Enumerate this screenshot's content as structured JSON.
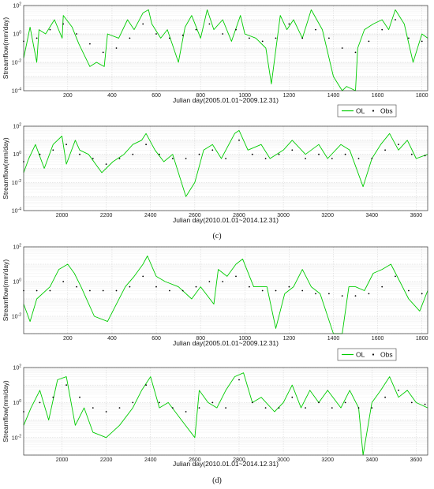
{
  "figure": {
    "captions": [
      "(c)",
      "(d)"
    ]
  },
  "legend": {
    "ol_label": "OL",
    "obs_label": "Obs",
    "ol_color": "#00cc00",
    "obs_color": "#000000"
  },
  "chart_data": [
    {
      "type": "line",
      "panel": "c-top",
      "xlabel": "Julian day(2005.01.01~2009.12.31)",
      "ylabel": "Streamflow(mm/day)",
      "xlim": [
        1,
        1826
      ],
      "xticks": [
        200,
        400,
        600,
        800,
        1000,
        1200,
        1400,
        1600,
        1800
      ],
      "ylim_log10": [
        -4,
        2
      ],
      "yscale": "log",
      "yticks": [
        "10^-4",
        "10^-2",
        "10^0",
        "10^2"
      ],
      "legend": "bottom-right, below plot",
      "grid": true,
      "series": [
        {
          "name": "OL",
          "style": "line",
          "color": "#00cc00",
          "x": [
            1,
            30,
            60,
            70,
            100,
            140,
            175,
            180,
            220,
            250,
            300,
            330,
            365,
            380,
            430,
            470,
            500,
            540,
            565,
            580,
            620,
            650,
            700,
            730,
            760,
            800,
            830,
            860,
            900,
            940,
            980,
            1000,
            1050,
            1095,
            1120,
            1160,
            1190,
            1220,
            1260,
            1300,
            1350,
            1400,
            1440,
            1460,
            1500,
            1510,
            1540,
            1580,
            1620,
            1650,
            1680,
            1720,
            1760,
            1800,
            1826
          ],
          "y": [
            0.02,
            3,
            0.01,
            2,
            1,
            10,
            0.5,
            20,
            3,
            0.2,
            0.005,
            0.01,
            0.005,
            1,
            0.5,
            10,
            2,
            30,
            50,
            5,
            0.5,
            2,
            0.01,
            3,
            20,
            0.5,
            50,
            2,
            10,
            0.3,
            20,
            1,
            0.5,
            0.1,
            0.0003,
            20,
            2,
            10,
            0.5,
            50,
            2,
            0.001,
            0.0001,
            0.0002,
            0.0001,
            0.1,
            2,
            5,
            10,
            2,
            50,
            5,
            0.01,
            1,
            0.5
          ]
        },
        {
          "name": "Obs",
          "style": "points",
          "color": "#000000",
          "x": [
            1,
            60,
            120,
            180,
            240,
            300,
            360,
            420,
            480,
            540,
            600,
            660,
            720,
            780,
            840,
            900,
            960,
            1020,
            1080,
            1140,
            1200,
            1260,
            1320,
            1380,
            1440,
            1500,
            1560,
            1620,
            1680,
            1740,
            1800
          ],
          "y": [
            0.3,
            0.5,
            2,
            5,
            1,
            0.2,
            0.05,
            0.1,
            0.5,
            5,
            1,
            0.5,
            0.8,
            2,
            5,
            1,
            2,
            0.5,
            0.3,
            0.5,
            5,
            0.5,
            2,
            0.5,
            0.1,
            0.05,
            0.3,
            2,
            10,
            0.5,
            0.3
          ]
        }
      ]
    },
    {
      "type": "line",
      "panel": "c-bottom",
      "xlabel": "Julian day(2010.01.01~2014.12.31)",
      "ylabel": "Streamflow(mm/day)",
      "xlim": [
        1827,
        3652
      ],
      "xticks": [
        2000,
        2200,
        2400,
        2600,
        2800,
        3000,
        3200,
        3400,
        3600
      ],
      "ylim_log10": [
        -4,
        2
      ],
      "yscale": "log",
      "yticks": [
        "10^-4",
        "10^-2",
        "10^0",
        "10^2"
      ],
      "grid": true,
      "series": [
        {
          "name": "OL",
          "style": "line",
          "color": "#00cc00",
          "x": [
            1827,
            1850,
            1880,
            1920,
            1960,
            2000,
            2020,
            2060,
            2080,
            2120,
            2180,
            2230,
            2280,
            2320,
            2360,
            2380,
            2420,
            2460,
            2500,
            2560,
            2600,
            2640,
            2680,
            2720,
            2780,
            2800,
            2840,
            2900,
            2940,
            3000,
            3040,
            3100,
            3160,
            3200,
            3260,
            3300,
            3360,
            3400,
            3440,
            3480,
            3520,
            3560,
            3600,
            3652
          ],
          "y": [
            0.05,
            0.5,
            5,
            0.1,
            5,
            20,
            0.2,
            10,
            2,
            1,
            0.05,
            0.3,
            1,
            5,
            10,
            30,
            2,
            0.3,
            1,
            0.001,
            0.01,
            2,
            5,
            0.5,
            30,
            50,
            2,
            5,
            0.5,
            2,
            10,
            1,
            5,
            0.5,
            5,
            2,
            0.005,
            0.5,
            5,
            30,
            2,
            10,
            0.5,
            1
          ]
        },
        {
          "name": "Obs",
          "style": "points",
          "color": "#000000",
          "x": [
            1827,
            1900,
            1960,
            2020,
            2080,
            2140,
            2200,
            2260,
            2320,
            2380,
            2440,
            2500,
            2560,
            2620,
            2680,
            2740,
            2800,
            2860,
            2920,
            2980,
            3040,
            3100,
            3160,
            3220,
            3280,
            3340,
            3400,
            3460,
            3520,
            3580,
            3640
          ],
          "y": [
            0.3,
            1,
            2,
            5,
            1,
            0.5,
            0.2,
            0.5,
            1,
            5,
            1,
            0.5,
            0.5,
            1,
            2,
            0.5,
            10,
            1,
            0.5,
            1,
            2,
            0.5,
            1,
            0.5,
            1,
            0.5,
            0.5,
            2,
            5,
            1,
            0.8
          ]
        }
      ]
    },
    {
      "type": "line",
      "panel": "d-top",
      "xlabel": "Julian day(2005.01.01~2009.12.31)",
      "ylabel": "Streamflow(mm/day)",
      "xlim": [
        1,
        1826
      ],
      "xticks": [
        200,
        400,
        600,
        800,
        1000,
        1200,
        1400,
        1600,
        1800
      ],
      "ylim_log10": [
        -3,
        2
      ],
      "yscale": "log",
      "yticks": [
        "10^-2",
        "10^0",
        "10^2"
      ],
      "legend": "bottom-right, below plot",
      "grid": true,
      "series": [
        {
          "name": "OL",
          "style": "line",
          "color": "#00cc00",
          "x": [
            1,
            30,
            60,
            120,
            160,
            200,
            230,
            260,
            320,
            380,
            420,
            460,
            500,
            540,
            560,
            600,
            640,
            700,
            760,
            800,
            860,
            880,
            920,
            960,
            990,
            1040,
            1100,
            1140,
            1180,
            1220,
            1260,
            1300,
            1340,
            1400,
            1440,
            1470,
            1500,
            1540,
            1580,
            1620,
            1660,
            1700,
            1740,
            1790,
            1826
          ],
          "y": [
            0.05,
            0.005,
            0.1,
            0.5,
            5,
            10,
            3,
            0.5,
            0.01,
            0.005,
            0.05,
            0.5,
            2,
            10,
            30,
            2,
            1,
            0.5,
            0.1,
            0.5,
            0.05,
            5,
            2,
            10,
            20,
            0.5,
            0.5,
            0.002,
            0.2,
            0.5,
            5,
            0.5,
            0.2,
            0.001,
            0.001,
            0.5,
            0.5,
            0.3,
            3,
            5,
            10,
            1,
            0.1,
            0.02,
            0.3
          ]
        },
        {
          "name": "Obs",
          "style": "points",
          "color": "#000000",
          "x": [
            1,
            60,
            120,
            180,
            240,
            300,
            360,
            420,
            480,
            540,
            600,
            660,
            720,
            780,
            840,
            900,
            960,
            1020,
            1080,
            1140,
            1200,
            1260,
            1320,
            1380,
            1440,
            1500,
            1560,
            1620,
            1680,
            1740,
            1800
          ],
          "y": [
            0.3,
            0.3,
            0.3,
            1,
            0.5,
            0.3,
            0.3,
            0.3,
            0.5,
            2,
            0.5,
            0.3,
            0.3,
            0.5,
            1,
            1,
            2,
            0.5,
            0.3,
            0.3,
            0.5,
            0.3,
            0.2,
            0.2,
            0.15,
            0.15,
            0.2,
            0.5,
            2,
            0.3,
            0.2
          ]
        }
      ]
    },
    {
      "type": "line",
      "panel": "d-bottom",
      "xlabel": "Julian day(2010.01.01~2014.12.31)",
      "ylabel": "Streamflow(mm/day)",
      "xlim": [
        1827,
        3652
      ],
      "xticks": [
        2000,
        2200,
        2400,
        2600,
        2800,
        3000,
        3200,
        3400,
        3600
      ],
      "ylim_log10": [
        -3,
        2
      ],
      "yscale": "log",
      "yticks": [
        "10^-2",
        "10^0",
        "10^2"
      ],
      "grid": true,
      "series": [
        {
          "name": "OL",
          "style": "line",
          "color": "#00cc00",
          "x": [
            1827,
            1860,
            1900,
            1940,
            1980,
            2020,
            2060,
            2100,
            2140,
            2200,
            2260,
            2320,
            2360,
            2400,
            2440,
            2480,
            2540,
            2600,
            2620,
            2660,
            2700,
            2740,
            2780,
            2820,
            2860,
            2900,
            2960,
            3000,
            3040,
            3080,
            3120,
            3160,
            3200,
            3260,
            3300,
            3340,
            3360,
            3400,
            3440,
            3480,
            3520,
            3560,
            3600,
            3652
          ],
          "y": [
            0.05,
            0.5,
            5,
            0.1,
            20,
            30,
            0.05,
            0.5,
            0.02,
            0.01,
            0.05,
            0.5,
            5,
            30,
            0.5,
            1,
            0.1,
            0.01,
            5,
            1,
            0.5,
            5,
            30,
            50,
            1,
            2,
            0.3,
            1,
            10,
            0.5,
            5,
            1,
            5,
            0.5,
            5,
            0.5,
            0.001,
            1,
            5,
            30,
            2,
            5,
            1,
            0.5
          ]
        },
        {
          "name": "Obs",
          "style": "points",
          "color": "#000000",
          "x": [
            1827,
            1900,
            1960,
            2020,
            2080,
            2140,
            2200,
            2260,
            2320,
            2380,
            2440,
            2500,
            2560,
            2620,
            2680,
            2740,
            2800,
            2860,
            2920,
            2980,
            3040,
            3100,
            3160,
            3220,
            3280,
            3340,
            3400,
            3460,
            3520,
            3580,
            3640
          ],
          "y": [
            0.3,
            1,
            2,
            10,
            2,
            0.5,
            0.3,
            0.5,
            1,
            10,
            1,
            0.5,
            0.3,
            0.5,
            1,
            0.5,
            20,
            1,
            0.5,
            0.5,
            2,
            0.5,
            1,
            0.5,
            1,
            0.5,
            0.5,
            2,
            5,
            1,
            0.8
          ]
        }
      ]
    }
  ]
}
